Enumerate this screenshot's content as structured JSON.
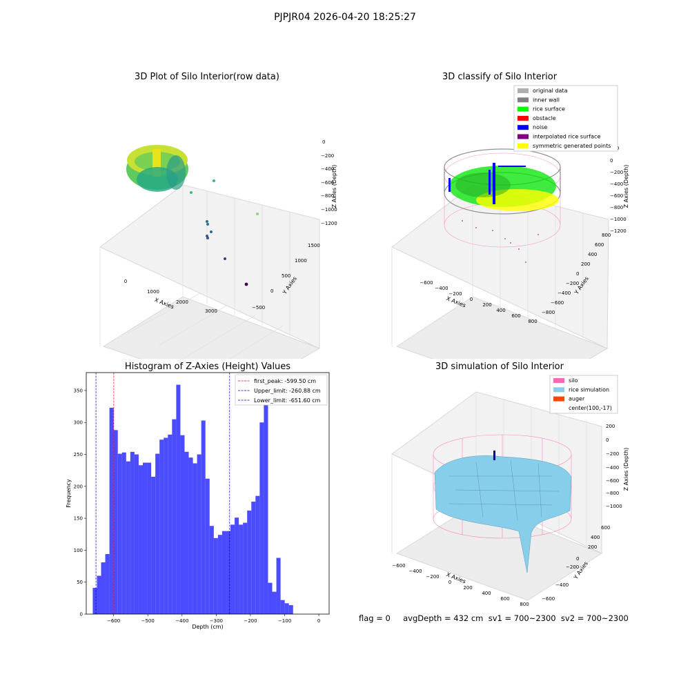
{
  "suptitle": "PJPJR04 2026-04-20 18:25:27",
  "colors": {
    "hist_bar": "#4b4bff",
    "first_peak_line": "#ff0000",
    "limit_line": "#0000cc",
    "silo": "#ff69b4",
    "rice": "#87ceeb",
    "auger": "#ff4500",
    "original": "#b0b0b0",
    "inner_wall": "#808080",
    "rice_surface": "#00ff00",
    "obstacle": "#ff0000",
    "noise": "#0000ff",
    "interp": "#800080",
    "symmetric": "#ffff00"
  },
  "panels": {
    "raw": {
      "title": "3D Plot of Silo Interior(row data)",
      "xlabel": "X Axies",
      "ylabel": "Y Axies",
      "zlabel": "Z Axies (Depth)",
      "xticks": [
        "0",
        "1000",
        "2000",
        "3000"
      ],
      "yticks": [
        "−500",
        "0",
        "500",
        "1000",
        "1500"
      ],
      "zticks": [
        "0",
        "−200",
        "−400",
        "−600",
        "−800",
        "−1000",
        "−1200"
      ]
    },
    "classify": {
      "title": "3D classify of Silo Interior",
      "xlabel": "X Axies",
      "ylabel": "Y Axies",
      "zlabel": "Z Axies (Depth)",
      "xticks": [
        "−600",
        "−400",
        "−200",
        "0",
        "200",
        "400",
        "600",
        "800"
      ],
      "yticks": [
        "−800",
        "−600",
        "−400",
        "−200",
        "0",
        "200",
        "400",
        "600",
        "800"
      ],
      "zticks": [
        "200",
        "0",
        "−200",
        "−400",
        "−600",
        "−800",
        "−1000",
        "−1200"
      ],
      "legend": [
        {
          "label": "original data",
          "color": "#b0b0b0"
        },
        {
          "label": "inner wall",
          "color": "#808080"
        },
        {
          "label": "rice surface",
          "color": "#00ff00"
        },
        {
          "label": "obstacle",
          "color": "#ff0000"
        },
        {
          "label": "noise",
          "color": "#0000ff"
        },
        {
          "label": "interpolated rice surface",
          "color": "#800080"
        },
        {
          "label": "symmetric generated points",
          "color": "#ffff00"
        }
      ]
    },
    "simulation": {
      "title": "3D simulation of Silo Interior",
      "xlabel": "X Axies",
      "ylabel": "Y Axies",
      "zlabel": "Z Axies (Depth)",
      "xticks": [
        "−600",
        "−400",
        "−200",
        "0",
        "200",
        "400",
        "600",
        "800"
      ],
      "yticks": [
        "−600",
        "−400",
        "−200",
        "0",
        "200",
        "400",
        "600"
      ],
      "zticks": [
        "200",
        "0",
        "−200",
        "−400",
        "−600",
        "−800",
        "−1000"
      ],
      "legend": [
        {
          "label": "silo",
          "color": "#ff69b4"
        },
        {
          "label": "rice simulation",
          "color": "#87ceeb"
        },
        {
          "label": "auger",
          "color": "#ff4500"
        },
        {
          "label": "center(100,-17)",
          "color": ""
        }
      ]
    }
  },
  "footer": {
    "text": "flag = 0     avgDepth = 432 cm  sv1 = 700~2300  sv2 = 700~2300"
  },
  "chart_data": [
    {
      "type": "bar",
      "title": "Histogram of Z-Axies (Height) Values",
      "xlabel": "Depth (cm)",
      "ylabel": "Frequency",
      "bin_start": -661,
      "bin_width": 12.2,
      "values": [
        41,
        60,
        81,
        94,
        323,
        288,
        251,
        253,
        239,
        254,
        250,
        233,
        237,
        237,
        215,
        251,
        273,
        276,
        281,
        305,
        359,
        280,
        254,
        245,
        236,
        250,
        303,
        212,
        138,
        119,
        124,
        130,
        130,
        140,
        151,
        140,
        143,
        162,
        176,
        185,
        300,
        337,
        49,
        35,
        88,
        22,
        17,
        14
      ],
      "xlim": [
        -680,
        30
      ],
      "ylim": [
        0,
        378
      ],
      "xticks": [
        -600,
        -500,
        -400,
        -300,
        -200,
        -100,
        0
      ],
      "xtick_labels": [
        "−600",
        "−500",
        "−400",
        "−300",
        "−200",
        "−100",
        "0"
      ],
      "yticks": [
        0,
        50,
        100,
        150,
        200,
        250,
        300,
        350
      ],
      "vlines": [
        {
          "label": "first_peak: -599.50 cm",
          "x": -599.5,
          "color": "#ff0000"
        },
        {
          "label": "Upper_limit: -260.88 cm",
          "x": -260.88,
          "color": "#0000cc"
        },
        {
          "label": "Lower_limit: -651.60 cm",
          "x": -651.6,
          "color": "#0000cc"
        }
      ],
      "legend_position": "top-right"
    }
  ]
}
